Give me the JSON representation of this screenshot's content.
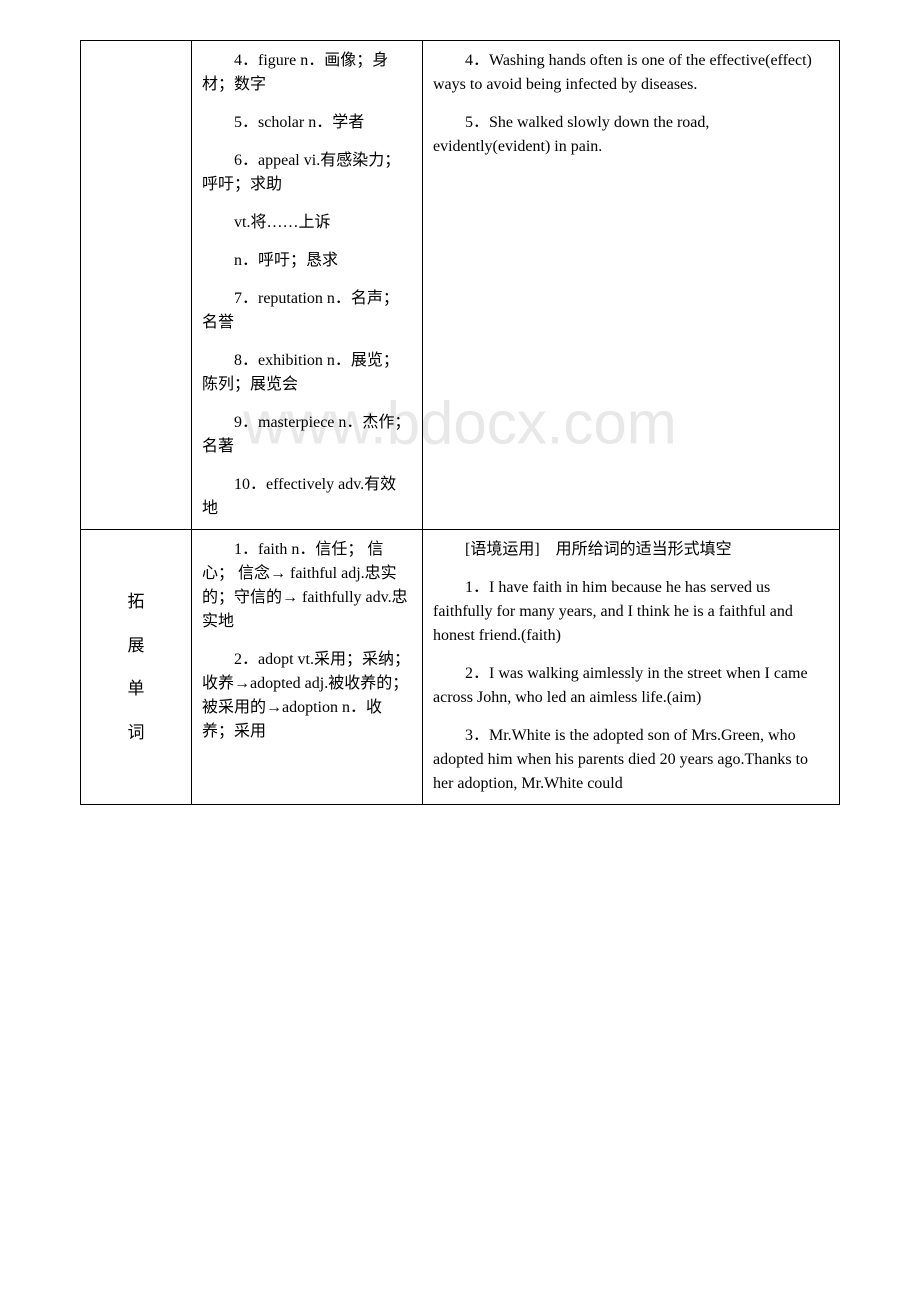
{
  "watermark": "www.bdocx.com",
  "row1": {
    "col2": {
      "items": [
        "4．figure n．画像；身材；数字",
        "5．scholar n．学者",
        "6．appeal vi.有感染力；呼吁；求助",
        "vt.将……上诉",
        "n．呼吁；恳求",
        "7．reputation n．名声；名誉",
        "8．exhibition n．展览；陈列；展览会",
        "9．masterpiece n．杰作；名著",
        "10．effectively adv.有效地"
      ]
    },
    "col3": {
      "items": [
        "4．Washing hands often is one of the effective(effect) ways to avoid being infected by diseases.",
        "5．She walked slowly down the road, evidently(evident) in pain."
      ]
    }
  },
  "row2": {
    "label_chars": [
      "拓",
      "展",
      "单",
      "词"
    ],
    "col2": {
      "items": [
        "1．faith n．信任； 信心； 信念→ faithful adj.忠实的；守信的→ faithfully adv.忠实地",
        "2．adopt vt.采用；采纳；收养→adopted adj.被收养的；被采用的→adoption n．收养；采用"
      ]
    },
    "col3": {
      "header": "[语境运用]　用所给词的适当形式填空",
      "items": [
        "1．I have faith in him because he has served us faithfully for many years, and I think he is a faithful and honest friend.(faith)",
        "2．I was walking aimlessly in the street when I came across John, who led an aimless life.(aim)",
        "3．Mr.White is the adopted son of Mrs.Green, who adopted him when his parents died 20 years ago.Thanks to her adoption, Mr.White could"
      ]
    }
  }
}
